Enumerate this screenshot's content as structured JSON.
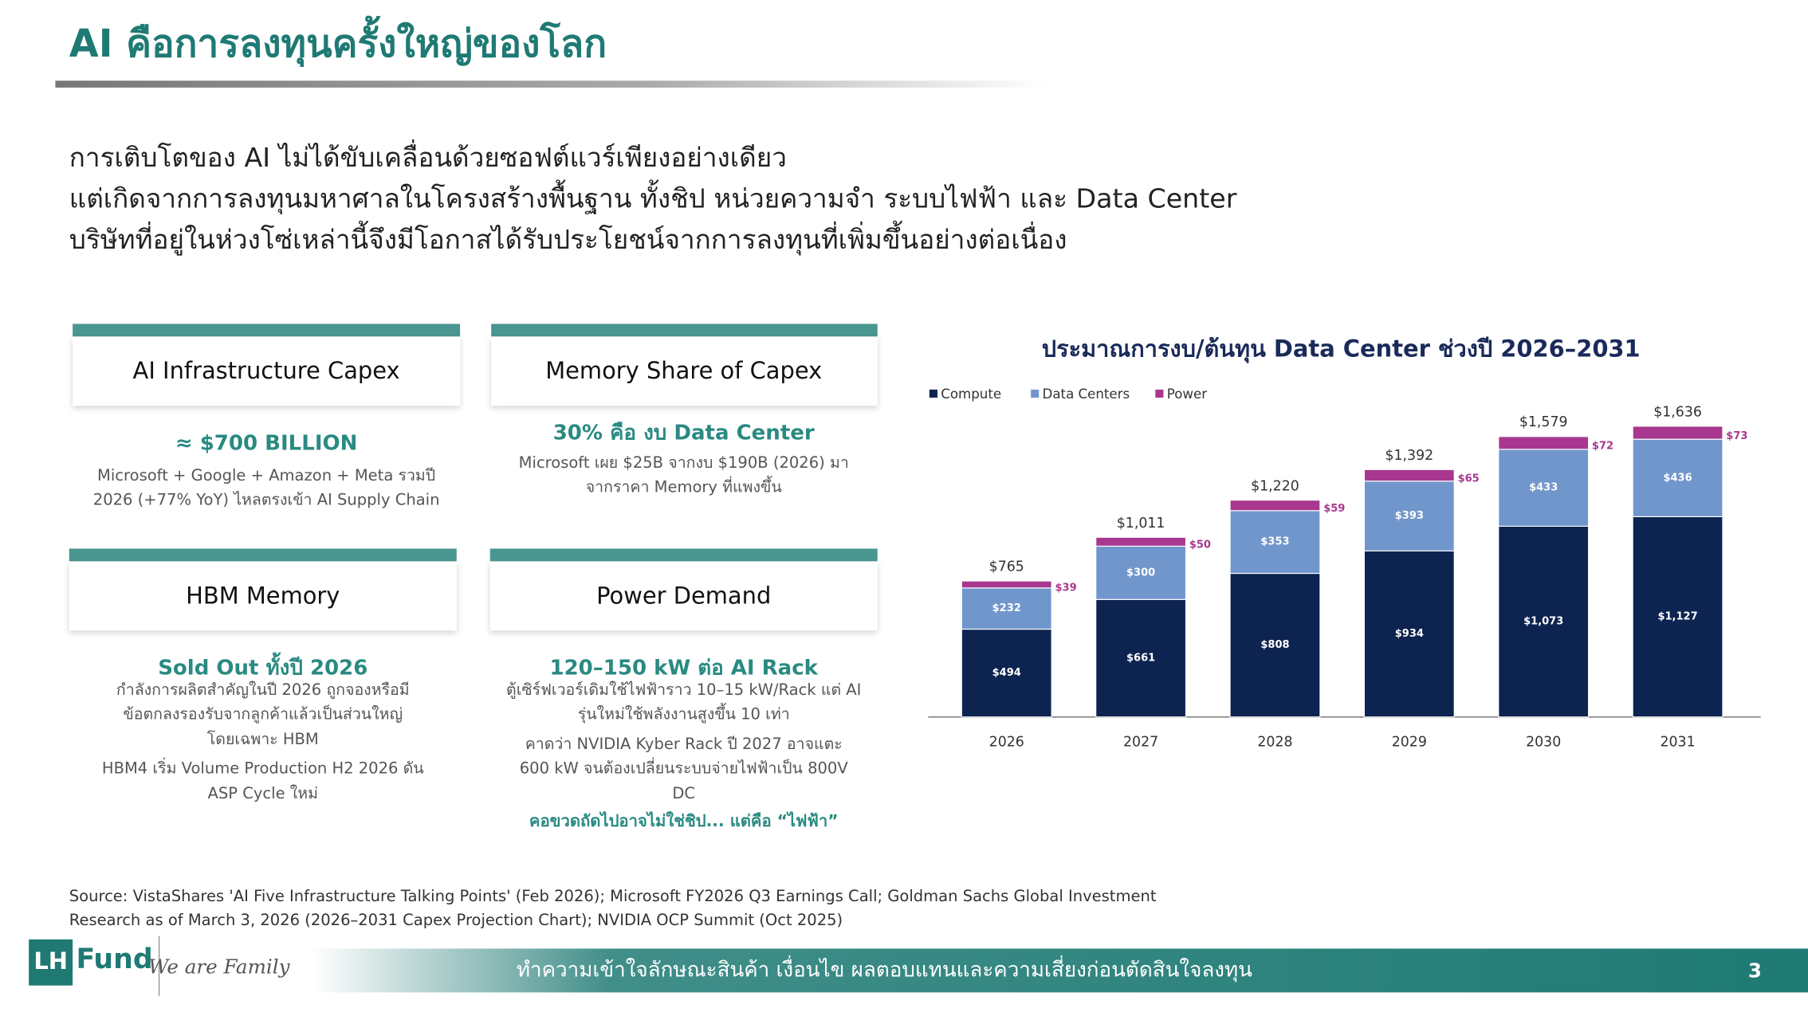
{
  "header": {
    "title": "AI คือการลงทุนครั้งใหญ่ของโลก"
  },
  "intro": {
    "lines": [
      "การเติบโตของ AI ไม่ได้ขับเคลื่อนด้วยซอฟต์แวร์เพียงอย่างเดียว",
      "แต่เกิดจากการลงทุนมหาศาลในโครงสร้างพื้นฐาน ทั้งชิป หน่วยความจำ ระบบไฟฟ้า และ Data Center",
      "บริษัทที่อยู่ในห่วงโซ่เหล่านี้จึงมีโอกาสได้รับประโยชน์จากการลงทุนที่เพิ่มขึ้นอย่างต่อเนื่อง"
    ]
  },
  "cards": [
    {
      "title": "AI Infrastructure Capex",
      "headline": "≈ $700 BILLION",
      "body": [
        "Microsoft + Google + Amazon + Meta รวมปี",
        "2026 (+77% YoY) ไหลตรงเข้า AI Supply Chain"
      ]
    },
    {
      "title": "Memory Share of Capex",
      "headline": "30% คือ งบ Data Center",
      "body": [
        "Microsoft เผย $25B จากงบ $190B (2026) มา",
        "จากราคา Memory ที่แพงขึ้น"
      ]
    },
    {
      "title": "HBM Memory",
      "headline": "Sold Out ทั้งปี 2026",
      "body": [
        "กำลังการผลิตสำคัญในปี 2026 ถูกจองหรือมี",
        "ข้อตกลงรองรับจากลูกค้าแล้วเป็นส่วนใหญ่",
        "โดยเฉพาะ HBM",
        "HBM4 เริ่ม Volume Production H2 2026 ดัน",
        "ASP Cycle ใหม่"
      ]
    },
    {
      "title": "Power Demand",
      "headline": "120–150 kW ต่อ AI Rack",
      "body": [
        "ตู้เซิร์ฟเวอร์เดิมใช้ไฟฟ้าราว 10–15 kW/Rack แต่ AI",
        "รุ่นใหม่ใช้พลังงานสูงขึ้น 10 เท่า",
        "คาดว่า NVIDIA Kyber Rack ปี 2027 อาจแตะ",
        "600 kW จนต้องเปลี่ยนระบบจ่ายไฟฟ้าเป็น 800V",
        "DC"
      ],
      "note": "คอขวดถัดไปอาจไม่ใช่ชิป... แต่คือ “ไฟฟ้า”"
    }
  ],
  "chart_data": {
    "type": "stacked-bar",
    "title": "ประมาณการงบ/ต้นทุน Data Center ช่วงปี 2026–2031",
    "categories": [
      "2026",
      "2027",
      "2028",
      "2029",
      "2030",
      "2031"
    ],
    "series": [
      {
        "name": "Compute",
        "color": "#0d2350",
        "values": [
          494,
          661,
          808,
          934,
          1073,
          1127
        ],
        "value_labels": [
          "$494",
          "$661",
          "$808",
          "$934",
          "$1,073",
          "$1,127"
        ]
      },
      {
        "name": "Data Centers",
        "color": "#7096cc",
        "values": [
          232,
          300,
          353,
          393,
          433,
          436
        ],
        "value_labels": [
          "$232",
          "$300",
          "$353",
          "$393",
          "$433",
          "$436"
        ]
      },
      {
        "name": "Power",
        "color": "#a8388f",
        "values": [
          39,
          50,
          59,
          65,
          72,
          73
        ],
        "value_labels": [
          "$39",
          "$50",
          "$59",
          "$65",
          "$72",
          "$73"
        ]
      }
    ],
    "totals": {
      "values": [
        765,
        1011,
        1220,
        1392,
        1579,
        1636
      ],
      "value_labels": [
        "$765",
        "$1,011",
        "$1,220",
        "$1,392",
        "$1,579",
        "$1,636"
      ]
    },
    "ylim": [
      0,
      1800
    ],
    "legend": "top-left"
  },
  "source": {
    "lines": [
      "Source: VistaShares 'AI Five Infrastructure Talking Points' (Feb 2026); Microsoft FY2026 Q3 Earnings Call; Goldman Sachs Global Investment",
      "Research as of March 3, 2026 (2026–2031 Capex Projection Chart); NVIDIA OCP Summit (Oct 2025)"
    ]
  },
  "footer": {
    "logo_mark": "LH",
    "logo_text": "Fund",
    "tagline": "We are Family",
    "text": "ทำความเข้าใจลักษณะสินค้า เงื่อนไข ผลตอบแทนและความเสี่ยงก่อนตัดสินใจลงทุน",
    "page": "3"
  }
}
